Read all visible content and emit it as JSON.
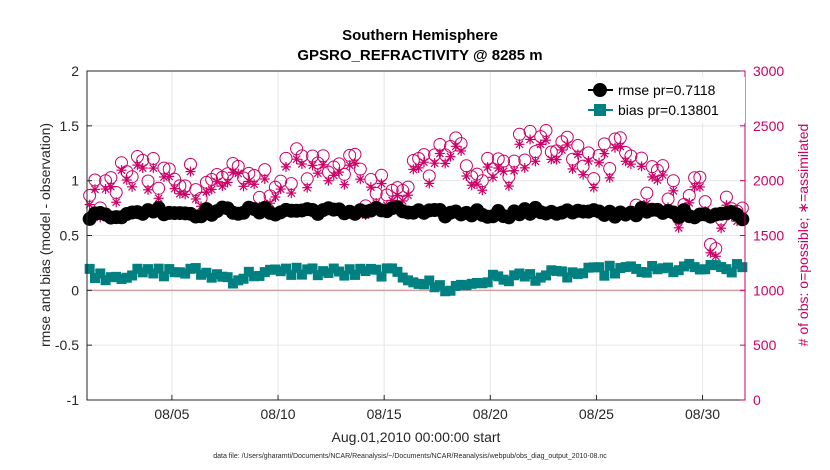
{
  "chart_data": {
    "type": "line",
    "title_lines": [
      "Southern Hemisphere",
      "GPSRO_REFRACTIVITY @ 8285 m"
    ],
    "xlabel": "Aug.01,2010 00:00:00 start",
    "ylabel": "rmse and bias (model - observation)",
    "y2label": "# of obs: o=possible; ∗=assimilated",
    "footer": "data file: /Users/gharamti/Documents/NCAR/Reanalysis/~/Documents/NCAR/Reanalysis/webpub/obs_diag_output_2010-08.nc",
    "xlim": [
      1,
      32
    ],
    "ylim": [
      -1,
      2
    ],
    "y2lim": [
      0,
      3000
    ],
    "x_ticks": [
      5,
      10,
      15,
      20,
      25,
      30
    ],
    "x_tick_labels": [
      "08/05",
      "08/10",
      "08/15",
      "08/20",
      "08/25",
      "08/30"
    ],
    "y_ticks": [
      -1,
      -0.5,
      0,
      0.5,
      1,
      1.5,
      2
    ],
    "y_tick_labels": [
      "-1",
      "-0.5",
      "0",
      "0.5",
      "1",
      "1.5",
      "2"
    ],
    "y2_ticks": [
      0,
      500,
      1000,
      1500,
      2000,
      2500,
      3000
    ],
    "y2_tick_labels": [
      "0",
      "500",
      "1000",
      "1500",
      "2000",
      "2500",
      "3000"
    ],
    "grid": true,
    "legend_position": "top-right",
    "colors": {
      "rmse": "#000000",
      "bias": "#008080",
      "obs": "#cc0066",
      "zero_line": "#d4a0a0"
    },
    "series": [
      {
        "name": "rmse pr=0.7118",
        "mean": 0.71,
        "anchors": [
          [
            1,
            0.68
          ],
          [
            2,
            0.7
          ],
          [
            3,
            0.68
          ],
          [
            4,
            0.74
          ],
          [
            5,
            0.72
          ],
          [
            6,
            0.7
          ],
          [
            7,
            0.72
          ],
          [
            8,
            0.73
          ],
          [
            9,
            0.72
          ],
          [
            10,
            0.72
          ],
          [
            11,
            0.73
          ],
          [
            12,
            0.73
          ],
          [
            13,
            0.71
          ],
          [
            14,
            0.73
          ],
          [
            15,
            0.73
          ],
          [
            16,
            0.72
          ],
          [
            17,
            0.7
          ],
          [
            18,
            0.7
          ],
          [
            19,
            0.71
          ],
          [
            20,
            0.7
          ],
          [
            21,
            0.7
          ],
          [
            22,
            0.72
          ],
          [
            23,
            0.72
          ],
          [
            24,
            0.71
          ],
          [
            25,
            0.7
          ],
          [
            26,
            0.7
          ],
          [
            27,
            0.72
          ],
          [
            28,
            0.71
          ],
          [
            29,
            0.7
          ],
          [
            30,
            0.7
          ],
          [
            31,
            0.7
          ],
          [
            32,
            0.68
          ]
        ]
      },
      {
        "name": "bias pr=0.13801",
        "mean": 0.14,
        "anchors": [
          [
            1,
            0.17
          ],
          [
            2,
            0.13
          ],
          [
            3,
            0.15
          ],
          [
            4,
            0.16
          ],
          [
            5,
            0.17
          ],
          [
            6,
            0.17
          ],
          [
            7,
            0.14
          ],
          [
            8,
            0.1
          ],
          [
            9,
            0.16
          ],
          [
            10,
            0.16
          ],
          [
            11,
            0.18
          ],
          [
            12,
            0.17
          ],
          [
            13,
            0.16
          ],
          [
            14,
            0.16
          ],
          [
            15,
            0.17
          ],
          [
            16,
            0.13
          ],
          [
            17,
            0.06
          ],
          [
            18,
            0.01
          ],
          [
            19,
            0.06
          ],
          [
            20,
            0.1
          ],
          [
            21,
            0.12
          ],
          [
            22,
            0.13
          ],
          [
            23,
            0.14
          ],
          [
            24,
            0.15
          ],
          [
            25,
            0.17
          ],
          [
            26,
            0.19
          ],
          [
            27,
            0.18
          ],
          [
            28,
            0.18
          ],
          [
            29,
            0.2
          ],
          [
            30,
            0.2
          ],
          [
            31,
            0.19
          ],
          [
            32,
            0.2
          ]
        ]
      },
      {
        "name": "possible",
        "axis": "right",
        "marker": "circle",
        "anchors": [
          [
            1,
            1800
          ],
          [
            2,
            1900
          ],
          [
            3,
            2120
          ],
          [
            4,
            2050
          ],
          [
            5,
            1980
          ],
          [
            6,
            2000
          ],
          [
            7,
            2020
          ],
          [
            8,
            2000
          ],
          [
            9,
            1940
          ],
          [
            10,
            2040
          ],
          [
            11,
            2200
          ],
          [
            12,
            2160
          ],
          [
            13,
            2200
          ],
          [
            14,
            2100
          ],
          [
            15,
            1960
          ],
          [
            16,
            2000
          ],
          [
            17,
            2200
          ],
          [
            18,
            2300
          ],
          [
            19,
            2150
          ],
          [
            20,
            2020
          ],
          [
            21,
            2240
          ],
          [
            22,
            2320
          ],
          [
            23,
            2360
          ],
          [
            24,
            2350
          ],
          [
            25,
            2120
          ],
          [
            26,
            2250
          ],
          [
            27,
            2100
          ],
          [
            28,
            1980
          ],
          [
            29,
            1920
          ],
          [
            30,
            1860
          ],
          [
            31,
            1780
          ],
          [
            32,
            1900
          ]
        ]
      },
      {
        "name": "assimilated",
        "axis": "right",
        "marker": "asterisk",
        "anchors": [
          [
            1,
            1740
          ],
          [
            2,
            1830
          ],
          [
            3,
            2060
          ],
          [
            4,
            1980
          ],
          [
            5,
            1910
          ],
          [
            6,
            1940
          ],
          [
            7,
            1960
          ],
          [
            8,
            1930
          ],
          [
            9,
            1880
          ],
          [
            10,
            1980
          ],
          [
            11,
            2130
          ],
          [
            12,
            2100
          ],
          [
            13,
            2140
          ],
          [
            14,
            2040
          ],
          [
            15,
            1900
          ],
          [
            16,
            1930
          ],
          [
            17,
            2130
          ],
          [
            18,
            2240
          ],
          [
            19,
            2080
          ],
          [
            20,
            1960
          ],
          [
            21,
            2170
          ],
          [
            22,
            2250
          ],
          [
            23,
            2300
          ],
          [
            24,
            2280
          ],
          [
            25,
            2050
          ],
          [
            26,
            2180
          ],
          [
            27,
            2040
          ],
          [
            28,
            1920
          ],
          [
            29,
            1860
          ],
          [
            30,
            1800
          ],
          [
            31,
            1720
          ],
          [
            32,
            1840
          ]
        ]
      }
    ]
  }
}
